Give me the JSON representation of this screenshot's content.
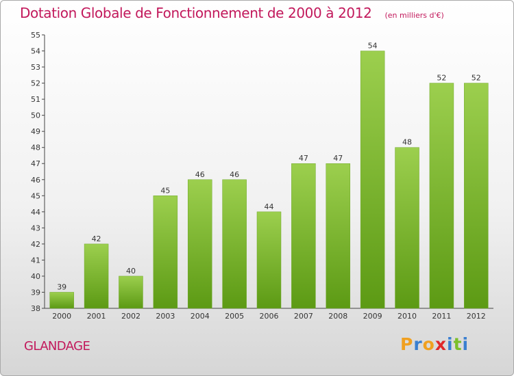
{
  "header": {
    "title": "Dotation Globale de Fonctionnement de 2000 à 2012",
    "subtitle": "(en milliers d'€)"
  },
  "footer": {
    "place": "GLANDAGE",
    "logo": [
      "P",
      "r",
      "o",
      "x",
      "i",
      "t",
      "i"
    ]
  },
  "colors": {
    "title": "#c2185b",
    "bar_top": "#9ccf4e",
    "bar_bottom": "#5c9a14",
    "logo": [
      "#f0a020",
      "#3a7fd0",
      "#f0a020",
      "#e0282a",
      "#3a7fd0",
      "#7bbf2a",
      "#3a7fd0"
    ]
  },
  "chart_data": {
    "type": "bar",
    "categories": [
      "2000",
      "2001",
      "2002",
      "2003",
      "2004",
      "2005",
      "2006",
      "2007",
      "2008",
      "2009",
      "2010",
      "2011",
      "2012"
    ],
    "values": [
      39,
      42,
      40,
      45,
      46,
      46,
      44,
      47,
      47,
      54,
      48,
      52,
      52
    ],
    "data_labels": [
      "39",
      "42",
      "40",
      "45",
      "46",
      "46",
      "44",
      "47",
      "47",
      "54",
      "48",
      "52",
      "52"
    ],
    "yticks": [
      "38",
      "39",
      "40",
      "41",
      "42",
      "43",
      "44",
      "45",
      "46",
      "47",
      "48",
      "49",
      "50",
      "51",
      "52",
      "53",
      "54",
      "55"
    ],
    "ylim": [
      38,
      55
    ],
    "grid": false,
    "legend": "none"
  }
}
